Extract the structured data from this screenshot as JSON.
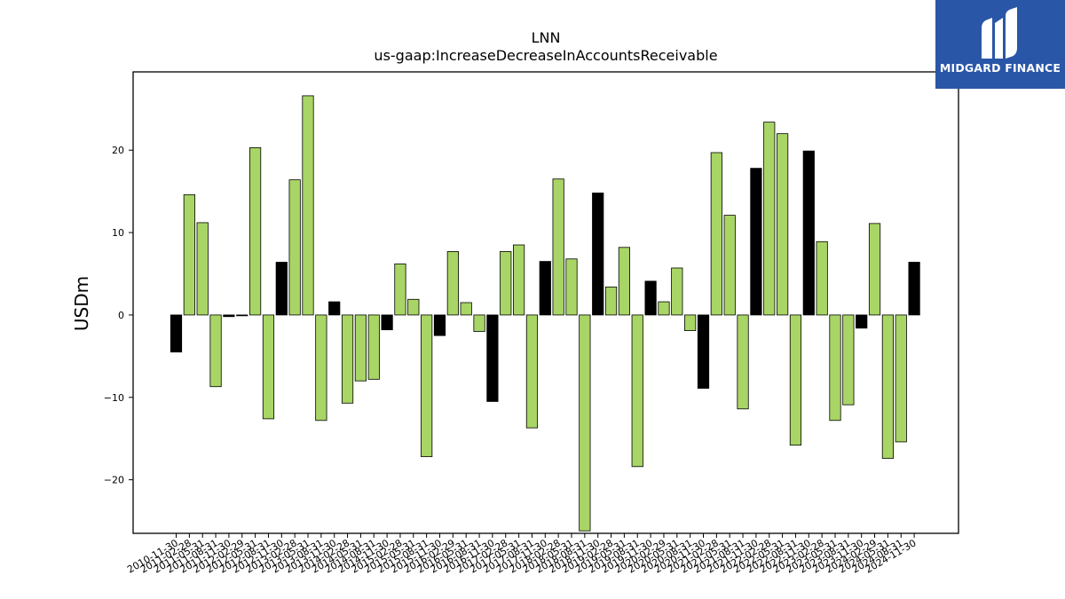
{
  "brand": {
    "name": "MIDGARD FINANCE",
    "logo_icon": "midgard-m-logo-icon",
    "background": "#2a56a8"
  },
  "colors": {
    "positive": "#a8d565",
    "negative": "#a8d565",
    "highlight": "#000000",
    "edge": "#000000"
  },
  "chart_data": {
    "type": "bar",
    "title": "LNN",
    "subtitle": "us-gaap:IncreaseDecreaseInAccountsReceivable",
    "xlabel": "",
    "ylabel": "USDm",
    "ylim": [
      -26.5,
      29.5
    ],
    "yticks": [
      -20,
      -10,
      0,
      10,
      20
    ],
    "grid": false,
    "legend": "none",
    "categories": [
      "2010-11-30",
      "2011-02-28",
      "2011-05-31",
      "2011-08-31",
      "2011-11-30",
      "2012-02-29",
      "2012-05-31",
      "2012-08-31",
      "2012-11-30",
      "2013-02-28",
      "2013-05-31",
      "2013-08-31",
      "2013-11-30",
      "2014-02-28",
      "2014-05-31",
      "2014-08-31",
      "2014-11-30",
      "2015-02-28",
      "2015-05-31",
      "2015-08-31",
      "2015-11-30",
      "2016-02-29",
      "2016-05-31",
      "2016-08-31",
      "2016-11-30",
      "2017-02-28",
      "2017-05-31",
      "2017-08-31",
      "2017-11-30",
      "2018-02-28",
      "2018-05-31",
      "2018-08-31",
      "2018-11-30",
      "2019-02-28",
      "2019-05-31",
      "2019-08-31",
      "2019-11-30",
      "2020-02-29",
      "2020-05-31",
      "2020-08-31",
      "2020-11-30",
      "2021-02-28",
      "2021-05-31",
      "2021-08-31",
      "2021-11-30",
      "2022-02-28",
      "2022-05-31",
      "2022-08-31",
      "2022-11-30",
      "2023-02-28",
      "2023-05-31",
      "2023-08-31",
      "2023-11-30",
      "2024-02-29",
      "2024-05-31",
      "2024-08-31",
      "2024-11-30"
    ],
    "values": [
      -4.5,
      14.6,
      11.2,
      -8.7,
      -0.2,
      -0.1,
      20.3,
      -12.6,
      6.4,
      16.4,
      26.6,
      -12.8,
      1.6,
      -10.7,
      -8.0,
      -7.8,
      -1.8,
      6.2,
      1.9,
      -17.2,
      -2.5,
      7.7,
      1.5,
      -2.0,
      -10.5,
      7.7,
      8.5,
      -13.7,
      6.5,
      16.5,
      6.8,
      -26.2,
      14.8,
      3.4,
      8.2,
      -18.4,
      4.1,
      1.6,
      5.7,
      -1.9,
      -8.9,
      19.7,
      12.1,
      -11.4,
      17.8,
      23.4,
      22.0,
      -15.8,
      19.9,
      8.9,
      -12.8,
      -10.9,
      -1.6,
      11.1,
      -17.4,
      -15.4,
      6.4
    ],
    "highlight": [
      true,
      false,
      false,
      false,
      true,
      true,
      false,
      false,
      true,
      false,
      false,
      false,
      true,
      false,
      false,
      false,
      true,
      false,
      false,
      false,
      true,
      false,
      false,
      false,
      true,
      false,
      false,
      false,
      true,
      false,
      false,
      false,
      true,
      false,
      false,
      false,
      true,
      false,
      false,
      false,
      true,
      false,
      false,
      false,
      true,
      false,
      false,
      false,
      true,
      false,
      false,
      false,
      true,
      false,
      false,
      false,
      true
    ]
  }
}
